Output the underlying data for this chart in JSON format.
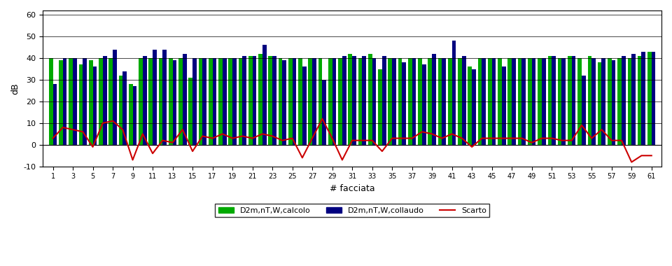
{
  "n_facades": 61,
  "ylabel": "dB",
  "xlabel": "# facciata",
  "ylim": [
    -10,
    62
  ],
  "yticks": [
    -10,
    0,
    10,
    20,
    30,
    40,
    50,
    60
  ],
  "xticks": [
    1,
    3,
    5,
    7,
    9,
    11,
    13,
    15,
    17,
    19,
    21,
    23,
    25,
    27,
    29,
    31,
    33,
    35,
    37,
    39,
    41,
    43,
    45,
    47,
    49,
    51,
    53,
    55,
    57,
    59,
    61
  ],
  "color_green": "#00aa00",
  "color_blue": "#000080",
  "color_red": "#cc0000",
  "legend_labels": [
    "D2m,nT,W,calcolo",
    "D2m,nT,W,collaudo",
    "Scarto"
  ],
  "green_values": [
    40,
    39,
    40,
    37,
    39,
    40,
    40,
    32,
    28,
    40,
    40,
    40,
    40,
    40,
    31,
    40,
    40,
    40,
    40,
    40,
    41,
    42,
    41,
    40,
    40,
    40,
    40,
    40,
    40,
    40,
    42,
    40,
    42,
    35,
    40,
    40,
    40,
    40,
    40,
    40,
    40,
    40,
    36,
    40,
    40,
    40,
    40,
    40,
    40,
    40,
    41,
    40,
    41,
    40,
    41,
    38,
    40,
    40,
    40,
    41,
    43
  ],
  "blue_values": [
    28,
    40,
    40,
    40,
    36,
    41,
    44,
    34,
    27,
    41,
    44,
    44,
    39,
    42,
    40,
    40,
    40,
    40,
    40,
    41,
    41,
    46,
    41,
    39,
    40,
    36,
    40,
    30,
    40,
    41,
    41,
    41,
    40,
    41,
    40,
    38,
    40,
    37,
    42,
    40,
    48,
    41,
    35,
    40,
    40,
    36,
    40,
    40,
    40,
    40,
    41,
    40,
    41,
    32,
    40,
    40,
    39,
    41,
    42,
    43,
    43
  ],
  "scarto_values": [
    3,
    8,
    7,
    6,
    -1,
    10,
    11,
    7,
    -7,
    5,
    -4,
    2,
    1,
    7,
    -3,
    4,
    3,
    5,
    3,
    4,
    3,
    5,
    4,
    2,
    3,
    -6,
    3,
    12,
    3,
    -7,
    2,
    2,
    2,
    -3,
    3,
    3,
    3,
    6,
    5,
    3,
    5,
    3,
    -1,
    3,
    3,
    3,
    3,
    3,
    1,
    3,
    3,
    2,
    2,
    9,
    3,
    7,
    2,
    2,
    -8,
    -5,
    -5
  ]
}
